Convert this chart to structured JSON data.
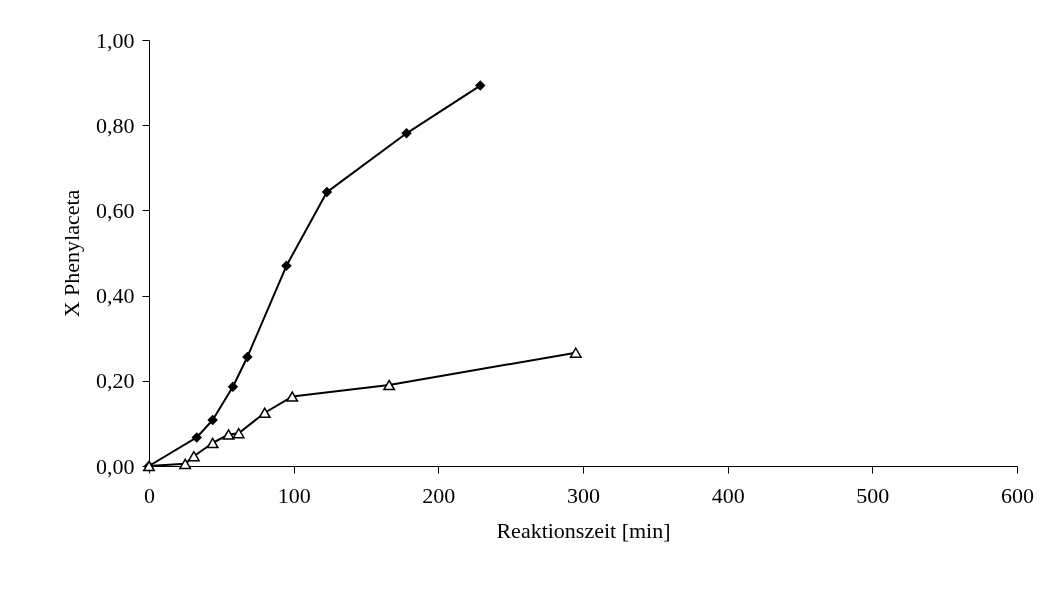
{
  "chart_data": {
    "type": "line",
    "xlabel": "Reaktionszeit [min]",
    "ylabel": "X Phenylaceta",
    "xlim": [
      0,
      600
    ],
    "xticks": [
      0,
      100,
      200,
      300,
      400,
      500,
      600
    ],
    "ylim": [
      0,
      1
    ],
    "yticks": [
      {
        "value": 0,
        "label": "0,00"
      },
      {
        "value": 0.2,
        "label": "0,20"
      },
      {
        "value": 0.4,
        "label": "0,40"
      },
      {
        "value": 0.6,
        "label": "0,60"
      },
      {
        "value": 0.8,
        "label": "0,80"
      },
      {
        "value": 1,
        "label": "1,00"
      }
    ],
    "grid": false,
    "line_style": "solid",
    "series": [
      {
        "color": "#000000",
        "marker": "diamond",
        "x": [
          0,
          33,
          44,
          58,
          68,
          95,
          123,
          178,
          229
        ],
        "values": [
          0,
          0.067,
          0.108,
          0.186,
          0.256,
          0.47,
          0.643,
          0.781,
          0.893
        ]
      },
      {
        "color": "#000000",
        "marker": "triangle",
        "x": [
          0,
          25,
          31,
          44,
          55,
          62,
          80,
          99,
          166,
          295
        ],
        "values": [
          0,
          0.005,
          0.023,
          0.054,
          0.074,
          0.077,
          0.125,
          0.163,
          0.19,
          0.266
        ]
      }
    ]
  }
}
